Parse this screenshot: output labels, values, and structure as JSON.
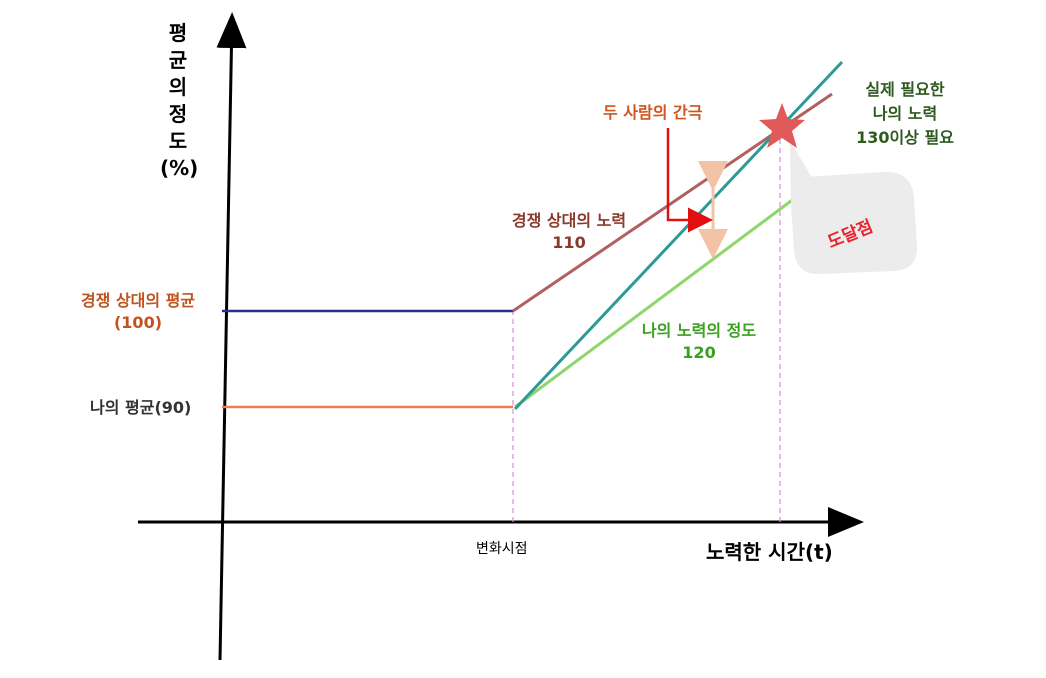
{
  "axes": {
    "y_title_lines": [
      "평",
      "균",
      "의",
      "정",
      "도",
      "(%)"
    ],
    "x_title": "노력한 시간(t)",
    "x_tick_label": "변화시점"
  },
  "labels": {
    "opponent_avg_line1": "경쟁 상대의 평균",
    "opponent_avg_line2": "(100)",
    "my_avg": "나의 평균(90)",
    "opponent_effort_line1": "경쟁 상대의 노력",
    "opponent_effort_line2": "110",
    "my_effort_line1": "나의 노력의 정도",
    "my_effort_line2": "120",
    "gap": "두 사람의 간극",
    "required_line1": "실제 필요한",
    "required_line2": "나의 노력",
    "required_line3": "130이상 필요",
    "arrival_point": "도달점"
  },
  "colors": {
    "opponent_avg": "#2e2e8a",
    "my_avg": "#e8805a",
    "opponent_effort": "#b06060",
    "my_effort": "#8ed66a",
    "required": "#2e9a96",
    "gap_arrow": "#f3c3a6",
    "gap_text": "#d2541e",
    "opponent_text": "#c0541e",
    "opponent_effort_text": "#8a3a2a",
    "my_effort_text": "#3aa020",
    "required_text": "#2e5a1e",
    "star": "#e05a5a",
    "callout_text": "#e8242e"
  }
}
